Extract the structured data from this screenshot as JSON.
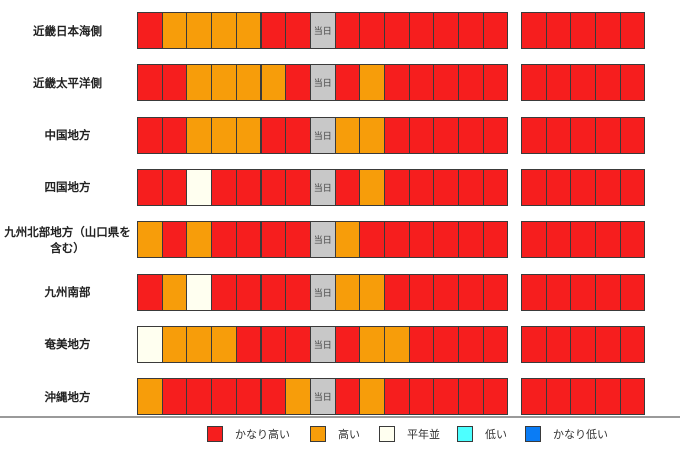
{
  "today_label": "当日",
  "colors": {
    "very_high": "#f61e1e",
    "high": "#f79d0a",
    "normal": "#fffff0",
    "low": "#4dffff",
    "very_low": "#0a7cf5",
    "today": "#c8c8c8"
  },
  "legend": [
    {
      "key": "very_high",
      "label": "かなり高い"
    },
    {
      "key": "high",
      "label": "高い"
    },
    {
      "key": "normal",
      "label": "平年並"
    },
    {
      "key": "low",
      "label": "低い"
    },
    {
      "key": "very_low",
      "label": "かなり低い"
    }
  ],
  "regions": [
    {
      "name": "近畿日本海側",
      "cells": [
        "R",
        "O",
        "O",
        "O",
        "O",
        "R",
        "R",
        "T",
        "R",
        "R",
        "R",
        "R",
        "R",
        "R",
        "R",
        "R",
        "R",
        "R",
        "R",
        "R"
      ]
    },
    {
      "name": "近畿太平洋側",
      "cells": [
        "R",
        "R",
        "O",
        "O",
        "O",
        "O",
        "R",
        "T",
        "R",
        "O",
        "R",
        "R",
        "R",
        "R",
        "R",
        "R",
        "R",
        "R",
        "R",
        "R"
      ]
    },
    {
      "name": "中国地方",
      "cells": [
        "R",
        "R",
        "O",
        "O",
        "O",
        "R",
        "R",
        "T",
        "O",
        "O",
        "R",
        "R",
        "R",
        "R",
        "R",
        "R",
        "R",
        "R",
        "R",
        "R"
      ]
    },
    {
      "name": "四国地方",
      "cells": [
        "R",
        "R",
        "W",
        "R",
        "R",
        "R",
        "R",
        "T",
        "R",
        "O",
        "R",
        "R",
        "R",
        "R",
        "R",
        "R",
        "R",
        "R",
        "R",
        "R"
      ]
    },
    {
      "name": "九州北部地方（山口県を含む）",
      "cells": [
        "O",
        "R",
        "O",
        "R",
        "R",
        "R",
        "R",
        "T",
        "O",
        "R",
        "R",
        "R",
        "R",
        "R",
        "R",
        "R",
        "R",
        "R",
        "R",
        "R"
      ]
    },
    {
      "name": "九州南部",
      "cells": [
        "R",
        "O",
        "W",
        "R",
        "R",
        "R",
        "R",
        "T",
        "O",
        "O",
        "R",
        "R",
        "R",
        "R",
        "R",
        "R",
        "R",
        "R",
        "R",
        "R"
      ]
    },
    {
      "name": "奄美地方",
      "cells": [
        "W",
        "O",
        "O",
        "O",
        "R",
        "R",
        "R",
        "T",
        "R",
        "O",
        "O",
        "R",
        "R",
        "R",
        "R",
        "R",
        "R",
        "R",
        "R",
        "R"
      ]
    },
    {
      "name": "沖縄地方",
      "cells": [
        "O",
        "R",
        "R",
        "R",
        "R",
        "R",
        "O",
        "T",
        "R",
        "O",
        "R",
        "R",
        "R",
        "R",
        "R",
        "R",
        "R",
        "R",
        "R",
        "R"
      ]
    }
  ]
}
